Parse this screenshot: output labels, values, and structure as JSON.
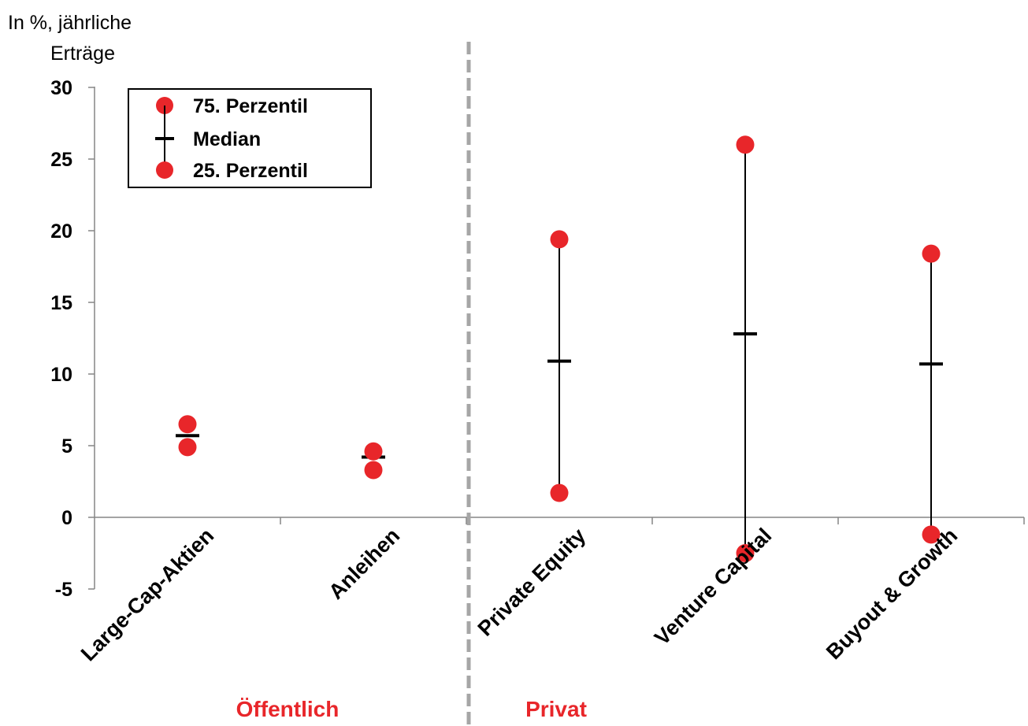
{
  "chart_data": {
    "type": "scatter",
    "title": "",
    "ylabel_lines": [
      "In %, jährliche",
      "Erträge"
    ],
    "xlabel": "",
    "ylim": [
      -5,
      30
    ],
    "yticks": [
      "-5",
      "0",
      "5",
      "10",
      "15",
      "20",
      "25",
      "30"
    ],
    "categories": [
      "Large-Cap-Aktien",
      "Anleihen",
      "Private Equity",
      "Venture Capital",
      "Buyout & Growth"
    ],
    "series": [
      {
        "name": "75. Perzentil",
        "marker": "circle",
        "color": "#e8262a",
        "values": [
          6.5,
          4.6,
          19.4,
          26.0,
          18.4
        ]
      },
      {
        "name": "Median",
        "marker": "dash",
        "color": "#000000",
        "values": [
          5.7,
          4.2,
          10.9,
          12.8,
          10.7
        ]
      },
      {
        "name": "25. Perzentil",
        "marker": "circle",
        "color": "#e8262a",
        "values": [
          4.9,
          3.3,
          1.7,
          -2.5,
          -1.2
        ]
      }
    ],
    "groups": [
      {
        "label": "Öffentlich",
        "color": "#e8262a"
      },
      {
        "label": "Privat",
        "color": "#e8262a"
      }
    ],
    "divider_after_category": 2,
    "divider_style": "dashed",
    "legend_position": "top-left",
    "grid": false
  }
}
